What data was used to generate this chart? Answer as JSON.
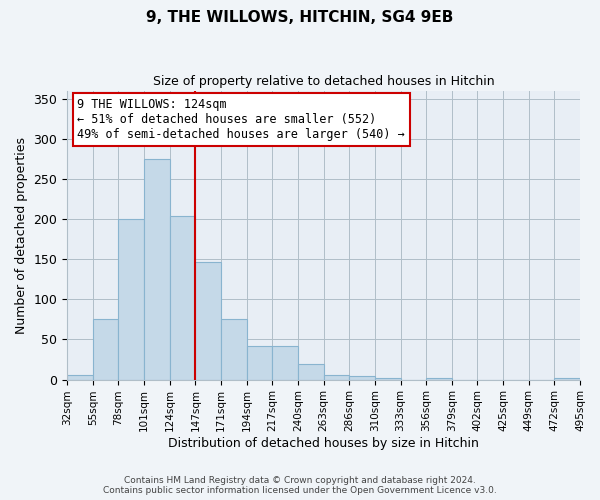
{
  "title": "9, THE WILLOWS, HITCHIN, SG4 9EB",
  "subtitle": "Size of property relative to detached houses in Hitchin",
  "xlabel": "Distribution of detached houses by size in Hitchin",
  "ylabel": "Number of detached properties",
  "bin_labels": [
    "32sqm",
    "55sqm",
    "78sqm",
    "101sqm",
    "124sqm",
    "147sqm",
    "171sqm",
    "194sqm",
    "217sqm",
    "240sqm",
    "263sqm",
    "286sqm",
    "310sqm",
    "333sqm",
    "356sqm",
    "379sqm",
    "402sqm",
    "425sqm",
    "449sqm",
    "472sqm",
    "495sqm"
  ],
  "bar_heights": [
    6,
    75,
    200,
    275,
    204,
    146,
    75,
    42,
    42,
    20,
    6,
    4,
    2,
    0,
    2,
    0,
    0,
    0,
    0,
    2
  ],
  "bar_color": "#c5d9e8",
  "bar_edge_color": "#89b4cf",
  "vline_x_index": 4,
  "vline_color": "#cc0000",
  "annotation_text": "9 THE WILLOWS: 124sqm\n← 51% of detached houses are smaller (552)\n49% of semi-detached houses are larger (540) →",
  "annotation_box_color": "#ffffff",
  "annotation_box_edge": "#cc0000",
  "ylim": [
    0,
    360
  ],
  "yticks": [
    0,
    50,
    100,
    150,
    200,
    250,
    300,
    350
  ],
  "footer_line1": "Contains HM Land Registry data © Crown copyright and database right 2024.",
  "footer_line2": "Contains public sector information licensed under the Open Government Licence v3.0.",
  "background_color": "#f0f4f8",
  "plot_background_color": "#e8eef5"
}
